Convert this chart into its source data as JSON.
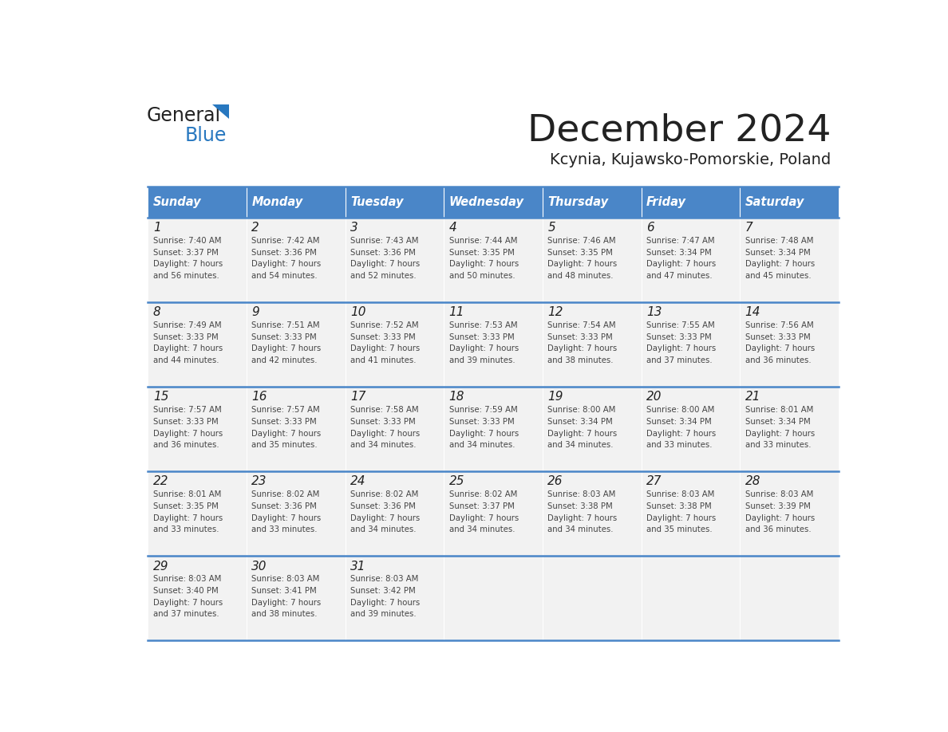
{
  "title": "December 2024",
  "subtitle": "Kcynia, Kujawsko-Pomorskie, Poland",
  "header_color": "#4A86C8",
  "header_text_color": "#FFFFFF",
  "cell_bg_color": "#F2F2F2",
  "border_color": "#4A86C8",
  "days_of_week": [
    "Sunday",
    "Monday",
    "Tuesday",
    "Wednesday",
    "Thursday",
    "Friday",
    "Saturday"
  ],
  "calendar_data": [
    [
      {
        "day": 1,
        "sunrise": "7:40 AM",
        "sunset": "3:37 PM",
        "daylight": "7 hours and 56 minutes."
      },
      {
        "day": 2,
        "sunrise": "7:42 AM",
        "sunset": "3:36 PM",
        "daylight": "7 hours and 54 minutes."
      },
      {
        "day": 3,
        "sunrise": "7:43 AM",
        "sunset": "3:36 PM",
        "daylight": "7 hours and 52 minutes."
      },
      {
        "day": 4,
        "sunrise": "7:44 AM",
        "sunset": "3:35 PM",
        "daylight": "7 hours and 50 minutes."
      },
      {
        "day": 5,
        "sunrise": "7:46 AM",
        "sunset": "3:35 PM",
        "daylight": "7 hours and 48 minutes."
      },
      {
        "day": 6,
        "sunrise": "7:47 AM",
        "sunset": "3:34 PM",
        "daylight": "7 hours and 47 minutes."
      },
      {
        "day": 7,
        "sunrise": "7:48 AM",
        "sunset": "3:34 PM",
        "daylight": "7 hours and 45 minutes."
      }
    ],
    [
      {
        "day": 8,
        "sunrise": "7:49 AM",
        "sunset": "3:33 PM",
        "daylight": "7 hours and 44 minutes."
      },
      {
        "day": 9,
        "sunrise": "7:51 AM",
        "sunset": "3:33 PM",
        "daylight": "7 hours and 42 minutes."
      },
      {
        "day": 10,
        "sunrise": "7:52 AM",
        "sunset": "3:33 PM",
        "daylight": "7 hours and 41 minutes."
      },
      {
        "day": 11,
        "sunrise": "7:53 AM",
        "sunset": "3:33 PM",
        "daylight": "7 hours and 39 minutes."
      },
      {
        "day": 12,
        "sunrise": "7:54 AM",
        "sunset": "3:33 PM",
        "daylight": "7 hours and 38 minutes."
      },
      {
        "day": 13,
        "sunrise": "7:55 AM",
        "sunset": "3:33 PM",
        "daylight": "7 hours and 37 minutes."
      },
      {
        "day": 14,
        "sunrise": "7:56 AM",
        "sunset": "3:33 PM",
        "daylight": "7 hours and 36 minutes."
      }
    ],
    [
      {
        "day": 15,
        "sunrise": "7:57 AM",
        "sunset": "3:33 PM",
        "daylight": "7 hours and 36 minutes."
      },
      {
        "day": 16,
        "sunrise": "7:57 AM",
        "sunset": "3:33 PM",
        "daylight": "7 hours and 35 minutes."
      },
      {
        "day": 17,
        "sunrise": "7:58 AM",
        "sunset": "3:33 PM",
        "daylight": "7 hours and 34 minutes."
      },
      {
        "day": 18,
        "sunrise": "7:59 AM",
        "sunset": "3:33 PM",
        "daylight": "7 hours and 34 minutes."
      },
      {
        "day": 19,
        "sunrise": "8:00 AM",
        "sunset": "3:34 PM",
        "daylight": "7 hours and 34 minutes."
      },
      {
        "day": 20,
        "sunrise": "8:00 AM",
        "sunset": "3:34 PM",
        "daylight": "7 hours and 33 minutes."
      },
      {
        "day": 21,
        "sunrise": "8:01 AM",
        "sunset": "3:34 PM",
        "daylight": "7 hours and 33 minutes."
      }
    ],
    [
      {
        "day": 22,
        "sunrise": "8:01 AM",
        "sunset": "3:35 PM",
        "daylight": "7 hours and 33 minutes."
      },
      {
        "day": 23,
        "sunrise": "8:02 AM",
        "sunset": "3:36 PM",
        "daylight": "7 hours and 33 minutes."
      },
      {
        "day": 24,
        "sunrise": "8:02 AM",
        "sunset": "3:36 PM",
        "daylight": "7 hours and 34 minutes."
      },
      {
        "day": 25,
        "sunrise": "8:02 AM",
        "sunset": "3:37 PM",
        "daylight": "7 hours and 34 minutes."
      },
      {
        "day": 26,
        "sunrise": "8:03 AM",
        "sunset": "3:38 PM",
        "daylight": "7 hours and 34 minutes."
      },
      {
        "day": 27,
        "sunrise": "8:03 AM",
        "sunset": "3:38 PM",
        "daylight": "7 hours and 35 minutes."
      },
      {
        "day": 28,
        "sunrise": "8:03 AM",
        "sunset": "3:39 PM",
        "daylight": "7 hours and 36 minutes."
      }
    ],
    [
      {
        "day": 29,
        "sunrise": "8:03 AM",
        "sunset": "3:40 PM",
        "daylight": "7 hours and 37 minutes."
      },
      {
        "day": 30,
        "sunrise": "8:03 AM",
        "sunset": "3:41 PM",
        "daylight": "7 hours and 38 minutes."
      },
      {
        "day": 31,
        "sunrise": "8:03 AM",
        "sunset": "3:42 PM",
        "daylight": "7 hours and 39 minutes."
      },
      null,
      null,
      null,
      null
    ]
  ],
  "text_color": "#222222",
  "small_text_color": "#444444",
  "logo_general_color": "#222222",
  "logo_blue_color": "#2878C0",
  "logo_triangle_color": "#2878C0"
}
